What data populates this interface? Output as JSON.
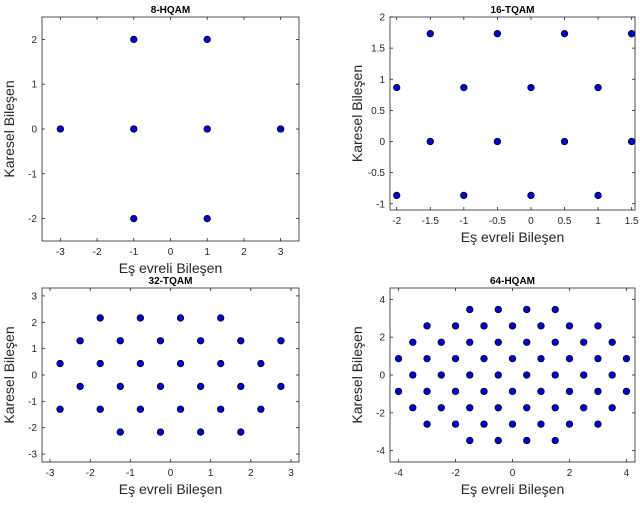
{
  "colors": {
    "marker_fill": "#0000cc",
    "marker_edge": "#000000",
    "axes": "#262626"
  },
  "chart_data": [
    {
      "type": "scatter",
      "title": "8-HQAM",
      "xlabel": "Eş evreli Bileşen",
      "ylabel": "Karesel Bileşen",
      "xlim": [
        -3.5,
        3.5
      ],
      "ylim": [
        -2.5,
        2.5
      ],
      "xticks": [
        -3,
        -2,
        -1,
        0,
        1,
        2,
        3
      ],
      "yticks": [
        -2,
        -1,
        0,
        1,
        2
      ],
      "xtick_labels": [
        "-3",
        "-2",
        "-1",
        "0",
        "1",
        "2",
        "3"
      ],
      "ytick_labels": [
        "-2",
        "-1",
        "0",
        "1",
        "2"
      ],
      "grid": false,
      "points": [
        [
          -1,
          2
        ],
        [
          1,
          2
        ],
        [
          -3,
          0
        ],
        [
          -1,
          0
        ],
        [
          1,
          0
        ],
        [
          3,
          0
        ],
        [
          -1,
          -2
        ],
        [
          1,
          -2
        ]
      ]
    },
    {
      "type": "scatter",
      "title": "16-TQAM",
      "xlabel": "Eş evreli Bileşen",
      "ylabel": "Karesel Bileşen",
      "xlim": [
        -2.1,
        1.55
      ],
      "ylim": [
        -1.1,
        2.0
      ],
      "xticks": [
        -2,
        -1.5,
        -1,
        -0.5,
        0,
        0.5,
        1,
        1.5
      ],
      "yticks": [
        -1,
        -0.5,
        0,
        0.5,
        1,
        1.5,
        2
      ],
      "xtick_labels": [
        "-2",
        "-1.5",
        "-1",
        "-0.5",
        "0",
        "0.5",
        "1",
        "1.5"
      ],
      "ytick_labels": [
        "-1",
        "-0.5",
        "0",
        "0.5",
        "1",
        "1.5",
        "2"
      ],
      "grid": false,
      "points": [
        [
          -1.5,
          1.732
        ],
        [
          -0.5,
          1.732
        ],
        [
          0.5,
          1.732
        ],
        [
          1.5,
          1.732
        ],
        [
          -2,
          0.866
        ],
        [
          -1,
          0.866
        ],
        [
          0,
          0.866
        ],
        [
          1,
          0.866
        ],
        [
          -1.5,
          0
        ],
        [
          -0.5,
          0
        ],
        [
          0.5,
          0
        ],
        [
          1.5,
          0
        ],
        [
          -2,
          -0.866
        ],
        [
          -1,
          -0.866
        ],
        [
          0,
          -0.866
        ],
        [
          1,
          -0.866
        ]
      ]
    },
    {
      "type": "scatter",
      "title": "32-TQAM",
      "xlabel": "Eş evreli Bileşen",
      "ylabel": "Karesel Bileşen",
      "xlim": [
        -3.2,
        3.2
      ],
      "ylim": [
        -3.3,
        3.3
      ],
      "xticks": [
        -3,
        -2,
        -1,
        0,
        1,
        2,
        3
      ],
      "yticks": [
        -3,
        -2,
        -1,
        0,
        1,
        2,
        3
      ],
      "xtick_labels": [
        "-3",
        "-2",
        "-1",
        "0",
        "1",
        "2",
        "3"
      ],
      "ytick_labels": [
        "-3",
        "-2",
        "-1",
        "0",
        "1",
        "2",
        "3"
      ],
      "grid": false,
      "points": [
        [
          -1.75,
          2.165
        ],
        [
          -0.75,
          2.165
        ],
        [
          0.25,
          2.165
        ],
        [
          1.25,
          2.165
        ],
        [
          -2.25,
          1.299
        ],
        [
          -1.25,
          1.299
        ],
        [
          -0.25,
          1.299
        ],
        [
          0.75,
          1.299
        ],
        [
          1.75,
          1.299
        ],
        [
          2.75,
          1.299
        ],
        [
          -2.75,
          0.433
        ],
        [
          -1.75,
          0.433
        ],
        [
          -0.75,
          0.433
        ],
        [
          0.25,
          0.433
        ],
        [
          1.25,
          0.433
        ],
        [
          2.25,
          0.433
        ],
        [
          -2.25,
          -0.433
        ],
        [
          -1.25,
          -0.433
        ],
        [
          -0.25,
          -0.433
        ],
        [
          0.75,
          -0.433
        ],
        [
          1.75,
          -0.433
        ],
        [
          2.75,
          -0.433
        ],
        [
          -2.75,
          -1.299
        ],
        [
          -1.75,
          -1.299
        ],
        [
          -0.75,
          -1.299
        ],
        [
          0.25,
          -1.299
        ],
        [
          1.25,
          -1.299
        ],
        [
          2.25,
          -1.299
        ],
        [
          -1.25,
          -2.165
        ],
        [
          -0.25,
          -2.165
        ],
        [
          0.75,
          -2.165
        ],
        [
          1.75,
          -2.165
        ]
      ]
    },
    {
      "type": "scatter",
      "title": "64-HQAM",
      "xlabel": "Eş evreli Bileşen",
      "ylabel": "Karesel Bileşen",
      "xlim": [
        -4.3,
        4.3
      ],
      "ylim": [
        -4.6,
        4.6
      ],
      "xticks": [
        -4,
        -2,
        0,
        2,
        4
      ],
      "yticks": [
        -4,
        -2,
        0,
        2,
        4
      ],
      "xtick_labels": [
        "-4",
        "-2",
        "0",
        "2",
        "4"
      ],
      "ytick_labels": [
        "-4",
        "-2",
        "0",
        "2",
        "4"
      ],
      "grid": false,
      "points": [
        [
          -1.5,
          3.464
        ],
        [
          -0.5,
          3.464
        ],
        [
          0.5,
          3.464
        ],
        [
          1.5,
          3.464
        ],
        [
          -3,
          2.598
        ],
        [
          -2,
          2.598
        ],
        [
          -1,
          2.598
        ],
        [
          0,
          2.598
        ],
        [
          1,
          2.598
        ],
        [
          2,
          2.598
        ],
        [
          3,
          2.598
        ],
        [
          -3.5,
          1.732
        ],
        [
          -2.5,
          1.732
        ],
        [
          -1.5,
          1.732
        ],
        [
          -0.5,
          1.732
        ],
        [
          0.5,
          1.732
        ],
        [
          1.5,
          1.732
        ],
        [
          2.5,
          1.732
        ],
        [
          3.5,
          1.732
        ],
        [
          -4,
          0.866
        ],
        [
          -3,
          0.866
        ],
        [
          -2,
          0.866
        ],
        [
          -1,
          0.866
        ],
        [
          0,
          0.866
        ],
        [
          1,
          0.866
        ],
        [
          2,
          0.866
        ],
        [
          3,
          0.866
        ],
        [
          4,
          0.866
        ],
        [
          -3.5,
          0
        ],
        [
          -2.5,
          0
        ],
        [
          -1.5,
          0
        ],
        [
          -0.5,
          0
        ],
        [
          0.5,
          0
        ],
        [
          1.5,
          0
        ],
        [
          2.5,
          0
        ],
        [
          3.5,
          0
        ],
        [
          -4,
          -0.866
        ],
        [
          -3,
          -0.866
        ],
        [
          -2,
          -0.866
        ],
        [
          -1,
          -0.866
        ],
        [
          0,
          -0.866
        ],
        [
          1,
          -0.866
        ],
        [
          2,
          -0.866
        ],
        [
          3,
          -0.866
        ],
        [
          4,
          -0.866
        ],
        [
          -3.5,
          -1.732
        ],
        [
          -2.5,
          -1.732
        ],
        [
          -1.5,
          -1.732
        ],
        [
          -0.5,
          -1.732
        ],
        [
          0.5,
          -1.732
        ],
        [
          1.5,
          -1.732
        ],
        [
          2.5,
          -1.732
        ],
        [
          3.5,
          -1.732
        ],
        [
          -3,
          -2.598
        ],
        [
          -2,
          -2.598
        ],
        [
          -1,
          -2.598
        ],
        [
          0,
          -2.598
        ],
        [
          1,
          -2.598
        ],
        [
          2,
          -2.598
        ],
        [
          3,
          -2.598
        ],
        [
          -1.5,
          -3.464
        ],
        [
          -0.5,
          -3.464
        ],
        [
          0.5,
          -3.464
        ],
        [
          1.5,
          -3.464
        ]
      ]
    }
  ]
}
